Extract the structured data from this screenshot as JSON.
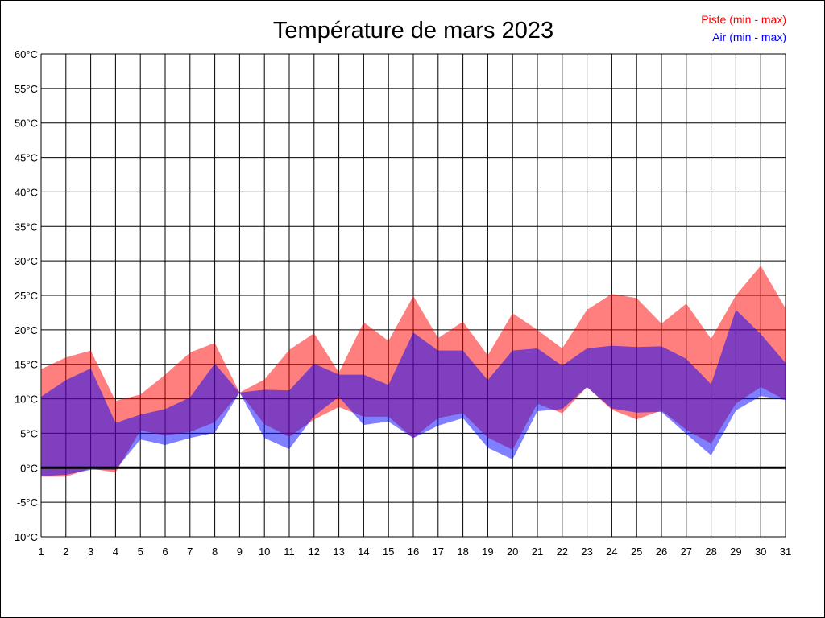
{
  "chart_data": {
    "type": "area",
    "title": "Température de mars 2023",
    "xlabel": "",
    "ylabel": "",
    "x": [
      1,
      2,
      3,
      4,
      5,
      6,
      7,
      8,
      9,
      10,
      11,
      12,
      13,
      14,
      15,
      16,
      17,
      18,
      19,
      20,
      21,
      22,
      23,
      24,
      25,
      26,
      27,
      28,
      29,
      30,
      31
    ],
    "xlim": [
      1,
      31
    ],
    "ylim": [
      -10,
      60
    ],
    "y_ticks": [
      -10,
      -5,
      0,
      5,
      10,
      15,
      20,
      25,
      30,
      35,
      40,
      45,
      50,
      55,
      60
    ],
    "y_tick_suffix": "°C",
    "grid": true,
    "legend_position": "top-right",
    "series": [
      {
        "name": "Piste (min - max)",
        "color": "#ff0000",
        "min": [
          -1.3,
          -1.3,
          -0.1,
          -0.7,
          5.4,
          4.7,
          5.2,
          6.6,
          10.9,
          6.3,
          4.5,
          7.0,
          8.8,
          7.4,
          7.4,
          4.3,
          7.2,
          7.9,
          4.4,
          2.6,
          9.3,
          7.9,
          11.7,
          8.4,
          7.0,
          8.3,
          5.5,
          3.5,
          9.3,
          11.7,
          9.8
        ],
        "max": [
          14.3,
          16.0,
          17.0,
          9.7,
          10.6,
          13.5,
          16.7,
          18.1,
          10.9,
          12.8,
          17.1,
          19.5,
          13.8,
          21.1,
          18.4,
          24.9,
          18.8,
          21.2,
          16.3,
          22.4,
          20.0,
          17.3,
          22.9,
          25.2,
          24.6,
          20.9,
          23.8,
          18.7,
          25.0,
          29.3,
          23.1
        ]
      },
      {
        "name": "Air (min - max)",
        "color": "#0000ff",
        "min": [
          -1.2,
          -1.0,
          -0.3,
          -0.3,
          4.1,
          3.3,
          4.3,
          5.1,
          10.9,
          4.3,
          2.7,
          7.5,
          10.3,
          6.2,
          6.7,
          4.3,
          6.1,
          7.2,
          2.9,
          1.2,
          8.2,
          8.5,
          11.7,
          8.6,
          8.0,
          8.1,
          4.9,
          1.8,
          8.3,
          10.4,
          9.8
        ],
        "max": [
          10.3,
          12.7,
          14.4,
          6.5,
          7.7,
          8.5,
          10.2,
          15.1,
          10.9,
          11.3,
          11.2,
          15.1,
          13.5,
          13.5,
          12.0,
          19.6,
          17.0,
          17.0,
          12.7,
          17.0,
          17.3,
          14.8,
          17.3,
          17.7,
          17.5,
          17.6,
          15.8,
          12.1,
          22.9,
          19.4,
          15.2
        ]
      }
    ]
  }
}
